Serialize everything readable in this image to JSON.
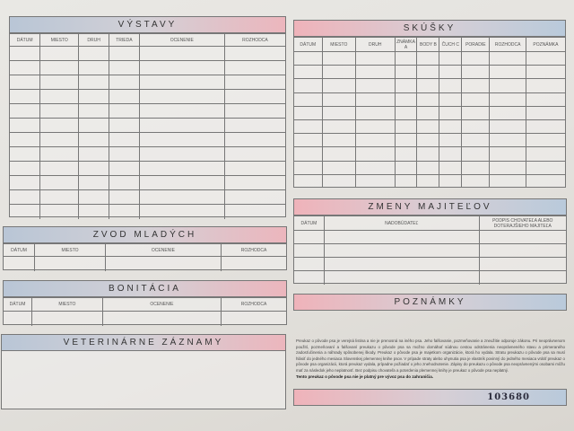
{
  "vystavy": {
    "title": "VÝSTAVY",
    "columns": [
      "DÁTUM",
      "MIESTO",
      "DRUH",
      "TRIEDA",
      "OCENENIE",
      "ROZHODCA"
    ]
  },
  "skusky": {
    "title": "SKÚŠKY",
    "columns": [
      "DÁTUM",
      "MIESTO",
      "DRUH",
      "ZNÁMKA A",
      "BODY B",
      "ČUCH C",
      "PORADIE",
      "ROZHODCA",
      "POZNÁMKA"
    ]
  },
  "zmeny": {
    "title": "ZMENY MAJITEĽOV",
    "columns": [
      "DÁTUM",
      "NADOBÚDATEĽ",
      "PODPIS CHOVATEĽA ALEBO DOTERAJŠIEHO MAJITEĽA"
    ]
  },
  "zvod": {
    "title": "ZVOD MLADÝCH",
    "columns": [
      "DÁTUM",
      "MIESTO",
      "OCENENIE",
      "ROZHODCA"
    ]
  },
  "bonitacia": {
    "title": "BONITÁCIA",
    "columns": [
      "DÁTUM",
      "MIESTO",
      "OCENENIE",
      "ROZHODCA"
    ]
  },
  "veterinarne": {
    "title": "VETERINÁRNE ZÁZNAMY"
  },
  "poznamky": {
    "title": "POZNÁMKY"
  },
  "legal_text": "Preukaz o pôvode psa je verejná listina a nie je prenosná na iného psa. Jeho falšovanie, pozmeňovanie a zneužitie odporuje zákonu. Pri neoprávnenom použití, pozmeňovaní a falšovaní preukazu o pôvode psa sa možno domáhať súdnou cestou odstránenia neoprávneného stavu a primeraného zadosťučinenia a náhrady spôsobenej škody. Preukaz o pôvode psa je majetkom organizácie, ktorá ho vydala. Stratu preukazu o pôvode psa sa musí hlásiť do jedného mesiaca Slovenskej plemennej knihe psov. V prípade straty alebo uhynutia psa je vlastník povinný do jedného mesiaca vrátiť preukaz o pôvode psa organizácii, ktorá preukaz vydala, prípadne požiadať o jeho znehodnotenie. Zápisy do preukazu o pôvode psa neoprávnenými osobami môžu mať za následok jeho neplatnosť. Bez podpisu chovateľa a potvrdenia plemennej knihy je preukaz o pôvode psa neplatný.",
  "legal_bold": "Tento preukaz o pôvode psa nie je platný pre vývoz psa do zahraničia.",
  "serial_number": "103680"
}
